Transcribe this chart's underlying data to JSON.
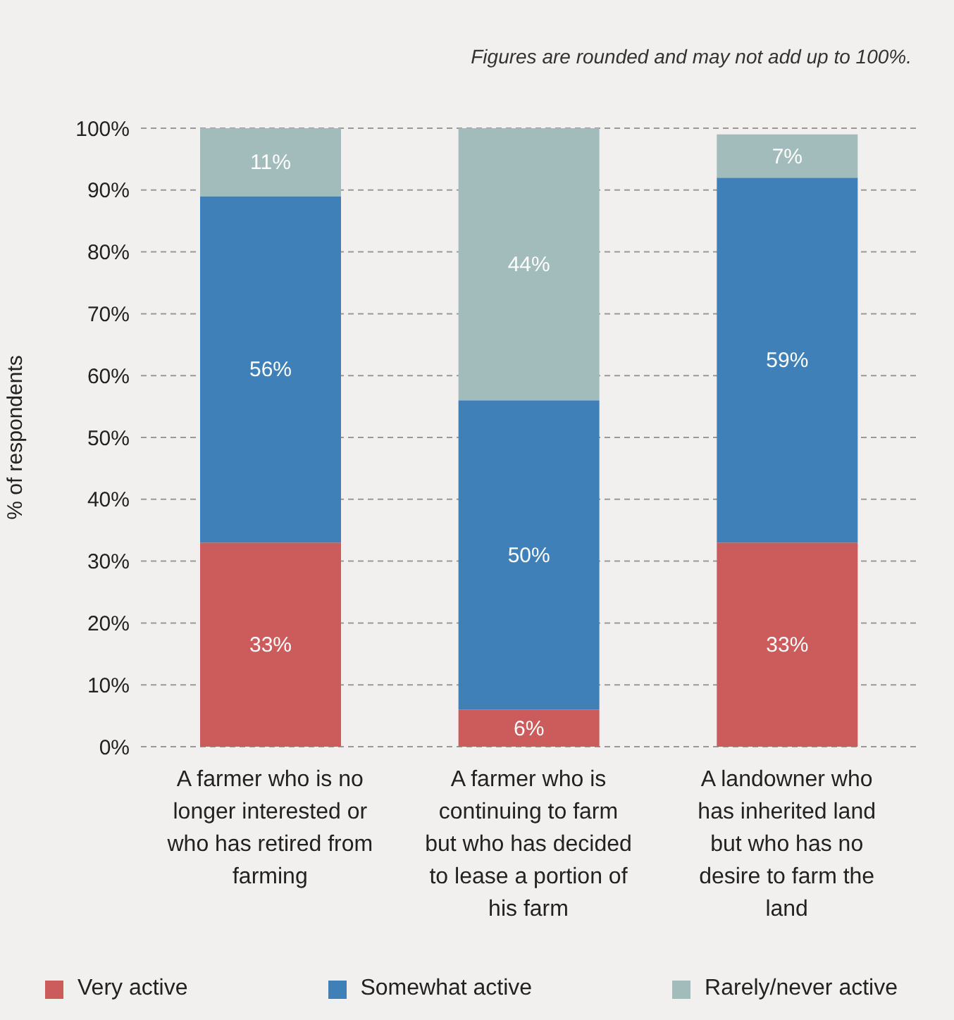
{
  "chart_data": {
    "type": "bar",
    "stacked": true,
    "ylabel": "% of respondents",
    "annotations": [
      "Figures are rounded and may not add up to 100%."
    ],
    "categories": [
      "A farmer who is no longer interested or who has retired from farming",
      "A farmer who is continuing to farm but who has decided to lease a portion of his farm",
      "A landowner who has inherited land but who has no desire to farm the land"
    ],
    "series": [
      {
        "name": "Very active",
        "color": "#cc5c5b",
        "values": [
          33,
          6,
          33
        ],
        "value_labels": [
          "33%",
          "6%",
          "33%"
        ]
      },
      {
        "name": "Somewhat active",
        "color": "#3f80b9",
        "values": [
          56,
          50,
          59
        ],
        "value_labels": [
          "56%",
          "50%",
          "59%"
        ]
      },
      {
        "name": "Rarely/never active",
        "color": "#a2bcbb",
        "values": [
          11,
          44,
          7
        ],
        "value_labels": [
          "11%",
          "44%",
          "7%"
        ]
      }
    ],
    "ylim": [
      0,
      100
    ],
    "yticks": [
      {
        "value": 0,
        "label": "0%"
      },
      {
        "value": 10,
        "label": "10%"
      },
      {
        "value": 20,
        "label": "20%"
      },
      {
        "value": 30,
        "label": "30%"
      },
      {
        "value": 40,
        "label": "40%"
      },
      {
        "value": 50,
        "label": "50%"
      },
      {
        "value": 60,
        "label": "60%"
      },
      {
        "value": 70,
        "label": "70%"
      },
      {
        "value": 80,
        "label": "80%"
      },
      {
        "value": 90,
        "label": "90%"
      },
      {
        "value": 100,
        "label": "100%"
      }
    ],
    "grid": "y",
    "legend": "bottom"
  }
}
